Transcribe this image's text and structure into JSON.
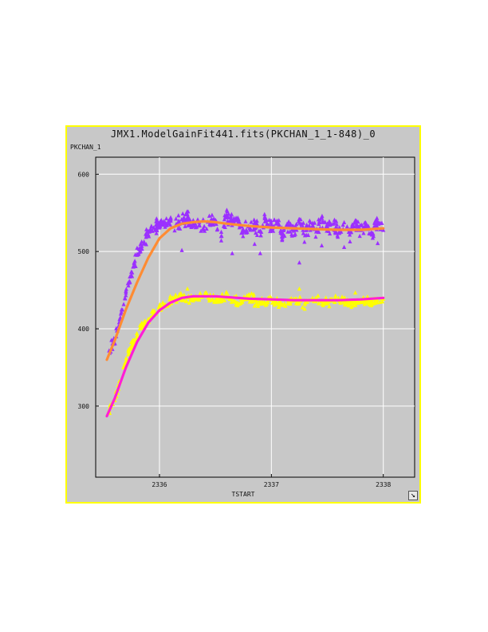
{
  "window": {
    "title": "JMX1.ModelGainFit441.fits(PKCHAN_1_1-848)_0"
  },
  "chart_data": {
    "type": "scatter",
    "title": "JMX1.ModelGainFit441.fits(PKCHAN_1_1-848)_0",
    "xlabel": "TSTART",
    "ylabel": "PKCHAN_1",
    "xlim": [
      2335.43,
      2338.28
    ],
    "ylim": [
      208,
      622
    ],
    "x_ticks": [
      2336,
      2337,
      2338
    ],
    "x_tick_labels": [
      "2336",
      "2337",
      "2338"
    ],
    "y_ticks": [
      300,
      400,
      500,
      600
    ],
    "y_tick_labels": [
      "300",
      "400",
      "500",
      "600"
    ],
    "grid": true,
    "background": "#c8c8c8",
    "border_color": "#ffff00",
    "series": [
      {
        "kind": "scatter",
        "marker": "triangle",
        "color": "#9b30ff",
        "points": [
          [
            2335.55,
            372
          ],
          [
            2335.58,
            381
          ],
          [
            2335.62,
            398
          ],
          [
            2335.65,
            415
          ],
          [
            2335.68,
            432
          ],
          [
            2335.7,
            447
          ],
          [
            2335.73,
            460
          ],
          [
            2335.75,
            474
          ],
          [
            2335.78,
            488
          ],
          [
            2335.8,
            497
          ],
          [
            2335.83,
            504
          ],
          [
            2335.86,
            511
          ],
          [
            2335.88,
            519
          ],
          [
            2335.91,
            526
          ],
          [
            2335.95,
            531
          ],
          [
            2336.0,
            537
          ],
          [
            2336.05,
            532
          ],
          [
            2336.1,
            540
          ],
          [
            2336.18,
            536
          ],
          [
            2336.25,
            544
          ],
          [
            2336.3,
            535
          ],
          [
            2336.4,
            533
          ],
          [
            2336.5,
            541
          ],
          [
            2336.55,
            520
          ],
          [
            2336.6,
            548
          ],
          [
            2336.65,
            538
          ],
          [
            2336.7,
            544
          ],
          [
            2336.75,
            526
          ],
          [
            2336.85,
            538
          ],
          [
            2336.9,
            527
          ],
          [
            2336.95,
            541
          ],
          [
            2337.0,
            531
          ],
          [
            2337.05,
            540
          ],
          [
            2337.1,
            519
          ],
          [
            2337.15,
            536
          ],
          [
            2337.2,
            527
          ],
          [
            2337.25,
            542
          ],
          [
            2337.3,
            521
          ],
          [
            2337.35,
            538
          ],
          [
            2337.4,
            526
          ],
          [
            2337.45,
            544
          ],
          [
            2337.5,
            530
          ],
          [
            2337.55,
            536
          ],
          [
            2337.6,
            524
          ],
          [
            2337.65,
            538
          ],
          [
            2337.7,
            522
          ],
          [
            2337.75,
            540
          ],
          [
            2337.8,
            528
          ],
          [
            2337.85,
            534
          ],
          [
            2337.9,
            522
          ],
          [
            2337.95,
            538
          ],
          [
            2338.0,
            528
          ]
        ],
        "outliers": [
          [
            2336.65,
            498
          ],
          [
            2336.9,
            498
          ],
          [
            2337.25,
            486
          ],
          [
            2337.65,
            506
          ],
          [
            2337.45,
            508
          ],
          [
            2337.95,
            511
          ],
          [
            2336.2,
            502
          ],
          [
            2336.85,
            510
          ]
        ]
      },
      {
        "kind": "scatter",
        "marker": "triangle",
        "color": "#ffff00",
        "points": [
          [
            2335.55,
            295
          ],
          [
            2335.58,
            303
          ],
          [
            2335.62,
            317
          ],
          [
            2335.65,
            332
          ],
          [
            2335.68,
            350
          ],
          [
            2335.72,
            367
          ],
          [
            2335.76,
            380
          ],
          [
            2335.8,
            392
          ],
          [
            2335.85,
            405
          ],
          [
            2335.9,
            413
          ],
          [
            2335.95,
            421
          ],
          [
            2336.0,
            427
          ],
          [
            2336.05,
            432
          ],
          [
            2336.1,
            436
          ],
          [
            2336.2,
            440
          ],
          [
            2336.3,
            439
          ],
          [
            2336.4,
            444
          ],
          [
            2336.5,
            437
          ],
          [
            2336.6,
            442
          ],
          [
            2336.7,
            434
          ],
          [
            2336.8,
            440
          ],
          [
            2336.9,
            433
          ],
          [
            2337.0,
            438
          ],
          [
            2337.1,
            431
          ],
          [
            2337.2,
            439
          ],
          [
            2337.3,
            432
          ],
          [
            2337.4,
            438
          ],
          [
            2337.5,
            433
          ],
          [
            2337.6,
            440
          ],
          [
            2337.7,
            432
          ],
          [
            2337.8,
            438
          ],
          [
            2337.9,
            434
          ],
          [
            2338.0,
            439
          ]
        ],
        "outliers": [
          [
            2337.25,
            452
          ],
          [
            2336.25,
            452
          ],
          [
            2337.75,
            447
          ]
        ]
      },
      {
        "kind": "line",
        "color": "#ff8c33",
        "name": "",
        "points": [
          [
            2335.53,
            360
          ],
          [
            2335.6,
            385
          ],
          [
            2335.7,
            425
          ],
          [
            2335.8,
            460
          ],
          [
            2335.9,
            492
          ],
          [
            2336.0,
            517
          ],
          [
            2336.1,
            530
          ],
          [
            2336.2,
            536
          ],
          [
            2336.3,
            538
          ],
          [
            2336.4,
            539
          ],
          [
            2336.5,
            538
          ],
          [
            2336.6,
            536
          ],
          [
            2336.8,
            533
          ],
          [
            2337.0,
            531
          ],
          [
            2337.2,
            530
          ],
          [
            2337.4,
            529
          ],
          [
            2337.6,
            528
          ],
          [
            2337.8,
            528
          ],
          [
            2338.0,
            530
          ]
        ]
      },
      {
        "kind": "line",
        "color": "#ff1fd6",
        "name": "",
        "points": [
          [
            2335.53,
            287
          ],
          [
            2335.6,
            310
          ],
          [
            2335.7,
            350
          ],
          [
            2335.8,
            383
          ],
          [
            2335.9,
            408
          ],
          [
            2336.0,
            424
          ],
          [
            2336.1,
            434
          ],
          [
            2336.2,
            440
          ],
          [
            2336.3,
            442
          ],
          [
            2336.4,
            442
          ],
          [
            2336.5,
            442
          ],
          [
            2336.6,
            441
          ],
          [
            2336.8,
            439
          ],
          [
            2337.0,
            438
          ],
          [
            2337.2,
            437
          ],
          [
            2337.4,
            437
          ],
          [
            2337.6,
            437
          ],
          [
            2337.8,
            438
          ],
          [
            2338.0,
            440
          ]
        ]
      }
    ]
  }
}
